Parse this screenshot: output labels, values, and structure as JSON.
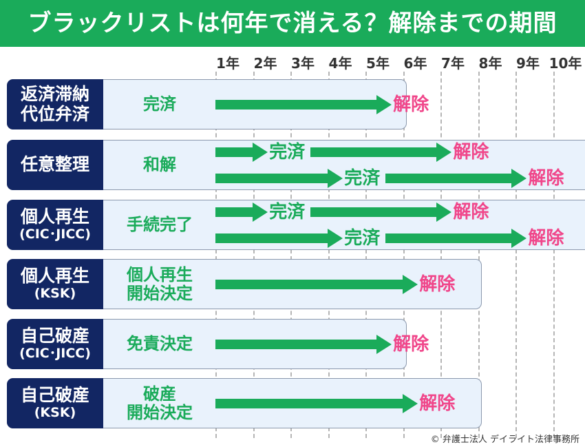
{
  "header": {
    "title": "ブラックリストは何年で消える？解除までの期間"
  },
  "years": [
    "1年",
    "2年",
    "3年",
    "4年",
    "5年",
    "6年",
    "7年",
    "8年",
    "9年",
    "10年"
  ],
  "rows": [
    {
      "label": [
        "返済滞納",
        "代位弁済"
      ],
      "status": [
        "完済"
      ],
      "end_year": 5,
      "events": [
        {
          "from": 0,
          "to": 4.7,
          "end_text": "解除"
        }
      ]
    },
    {
      "label": [
        "任意整理"
      ],
      "status": [
        "和解"
      ],
      "end_year": 10,
      "events": [
        {
          "from": 0,
          "to": 1.4,
          "mid_text": "完済",
          "to2": 6.3,
          "end_text": "解除"
        },
        {
          "from": 0,
          "to": 3.4,
          "mid_text": "完済",
          "to2": 8.3,
          "end_text": "解除"
        }
      ]
    },
    {
      "label": [
        "個人再生",
        "(CIC･JICC)"
      ],
      "status": [
        "手続完了"
      ],
      "end_year": 10,
      "events": [
        {
          "from": 0,
          "to": 1.4,
          "mid_text": "完済",
          "to2": 6.3,
          "end_text": "解除"
        },
        {
          "from": 0,
          "to": 3.4,
          "mid_text": "完済",
          "to2": 8.3,
          "end_text": "解除"
        }
      ]
    },
    {
      "label": [
        "個人再生",
        "(KSK)"
      ],
      "status": [
        "個人再生",
        "開始決定"
      ],
      "end_year": 7,
      "events": [
        {
          "from": 0,
          "to": 5.4,
          "end_text": "解除"
        }
      ]
    },
    {
      "label": [
        "自己破産",
        "(CIC･JICC)"
      ],
      "status": [
        "免責決定"
      ],
      "end_year": 5,
      "events": [
        {
          "from": 0,
          "to": 4.7,
          "end_text": "解除"
        }
      ]
    },
    {
      "label": [
        "自己破産",
        "(KSK)"
      ],
      "status": [
        "破産",
        "開始決定"
      ],
      "end_year": 7,
      "events": [
        {
          "from": 0,
          "to": 5.4,
          "end_text": "解除"
        }
      ]
    }
  ],
  "credit": "© 弁護士法人 デイライト法律事務所",
  "colors": {
    "header": "#1aab5a",
    "label_bg": "#122663",
    "arrow": "#1aab5a",
    "release": "#f0468a",
    "box_bg": "#e9f2fc"
  }
}
